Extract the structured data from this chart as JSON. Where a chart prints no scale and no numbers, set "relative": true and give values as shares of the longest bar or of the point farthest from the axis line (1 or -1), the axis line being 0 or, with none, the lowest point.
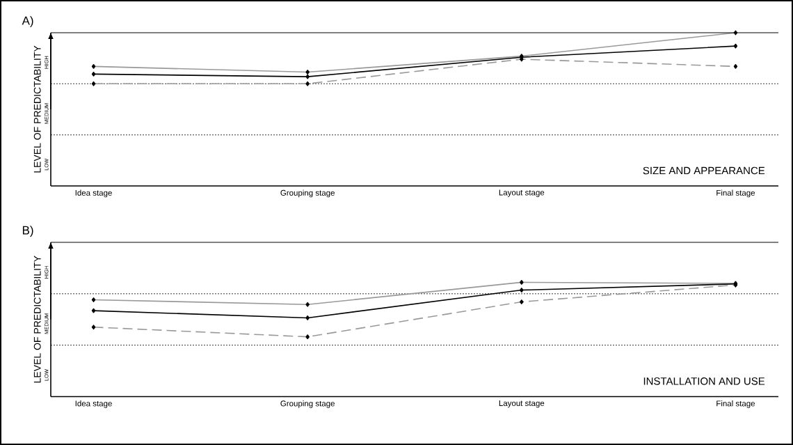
{
  "chart_data": [
    {
      "type": "line",
      "relative": true,
      "title": "A)",
      "ylabel": "LEVEL OF PREDICTABILITY",
      "annotations": [
        "SIZE AND APPEARANCE",
        "LOW",
        "MEDIUM",
        "HIGH"
      ],
      "categories": [
        "Idea stage",
        "Grouping stage",
        "Layout stage",
        "Final stage"
      ],
      "ref_lines": [
        {
          "axis": "y",
          "value": 0.333,
          "line_style": "dotted"
        },
        {
          "axis": "y",
          "value": 0.667,
          "line_style": "dotted"
        }
      ],
      "marker": "diamond",
      "line_style": "solid",
      "series": [
        {
          "color": "#999999",
          "values": [
            0.78,
            0.743,
            0.847,
            1.0
          ]
        },
        {
          "color": "#000000",
          "values": [
            0.73,
            0.713,
            0.84,
            0.913
          ]
        },
        {
          "color": "#999999",
          "line_style": "dashed",
          "values": [
            0.667,
            0.667,
            0.827,
            0.78
          ]
        }
      ]
    },
    {
      "type": "line",
      "relative": true,
      "title": "B)",
      "ylabel": "LEVEL OF PREDICTABILITY",
      "annotations": [
        "INSTALLATION AND USE",
        "LOW",
        "MEDIUM",
        "HIGH"
      ],
      "categories": [
        "Idea stage",
        "Grouping stage",
        "Layout stage",
        "Final stage"
      ],
      "ref_lines": [
        {
          "axis": "y",
          "value": 0.45,
          "line_style": "dotted"
        },
        {
          "axis": "y",
          "value": 0.9,
          "line_style": "dotted"
        }
      ],
      "marker": "diamond",
      "line_style": "solid",
      "series": [
        {
          "color": "#999999",
          "values": [
            0.847,
            0.806,
            1.0,
            0.991
          ]
        },
        {
          "color": "#000000",
          "values": [
            0.752,
            0.689,
            0.932,
            0.986
          ]
        },
        {
          "color": "#999999",
          "line_style": "dashed",
          "values": [
            0.608,
            0.523,
            0.829,
            0.977
          ]
        }
      ]
    }
  ]
}
